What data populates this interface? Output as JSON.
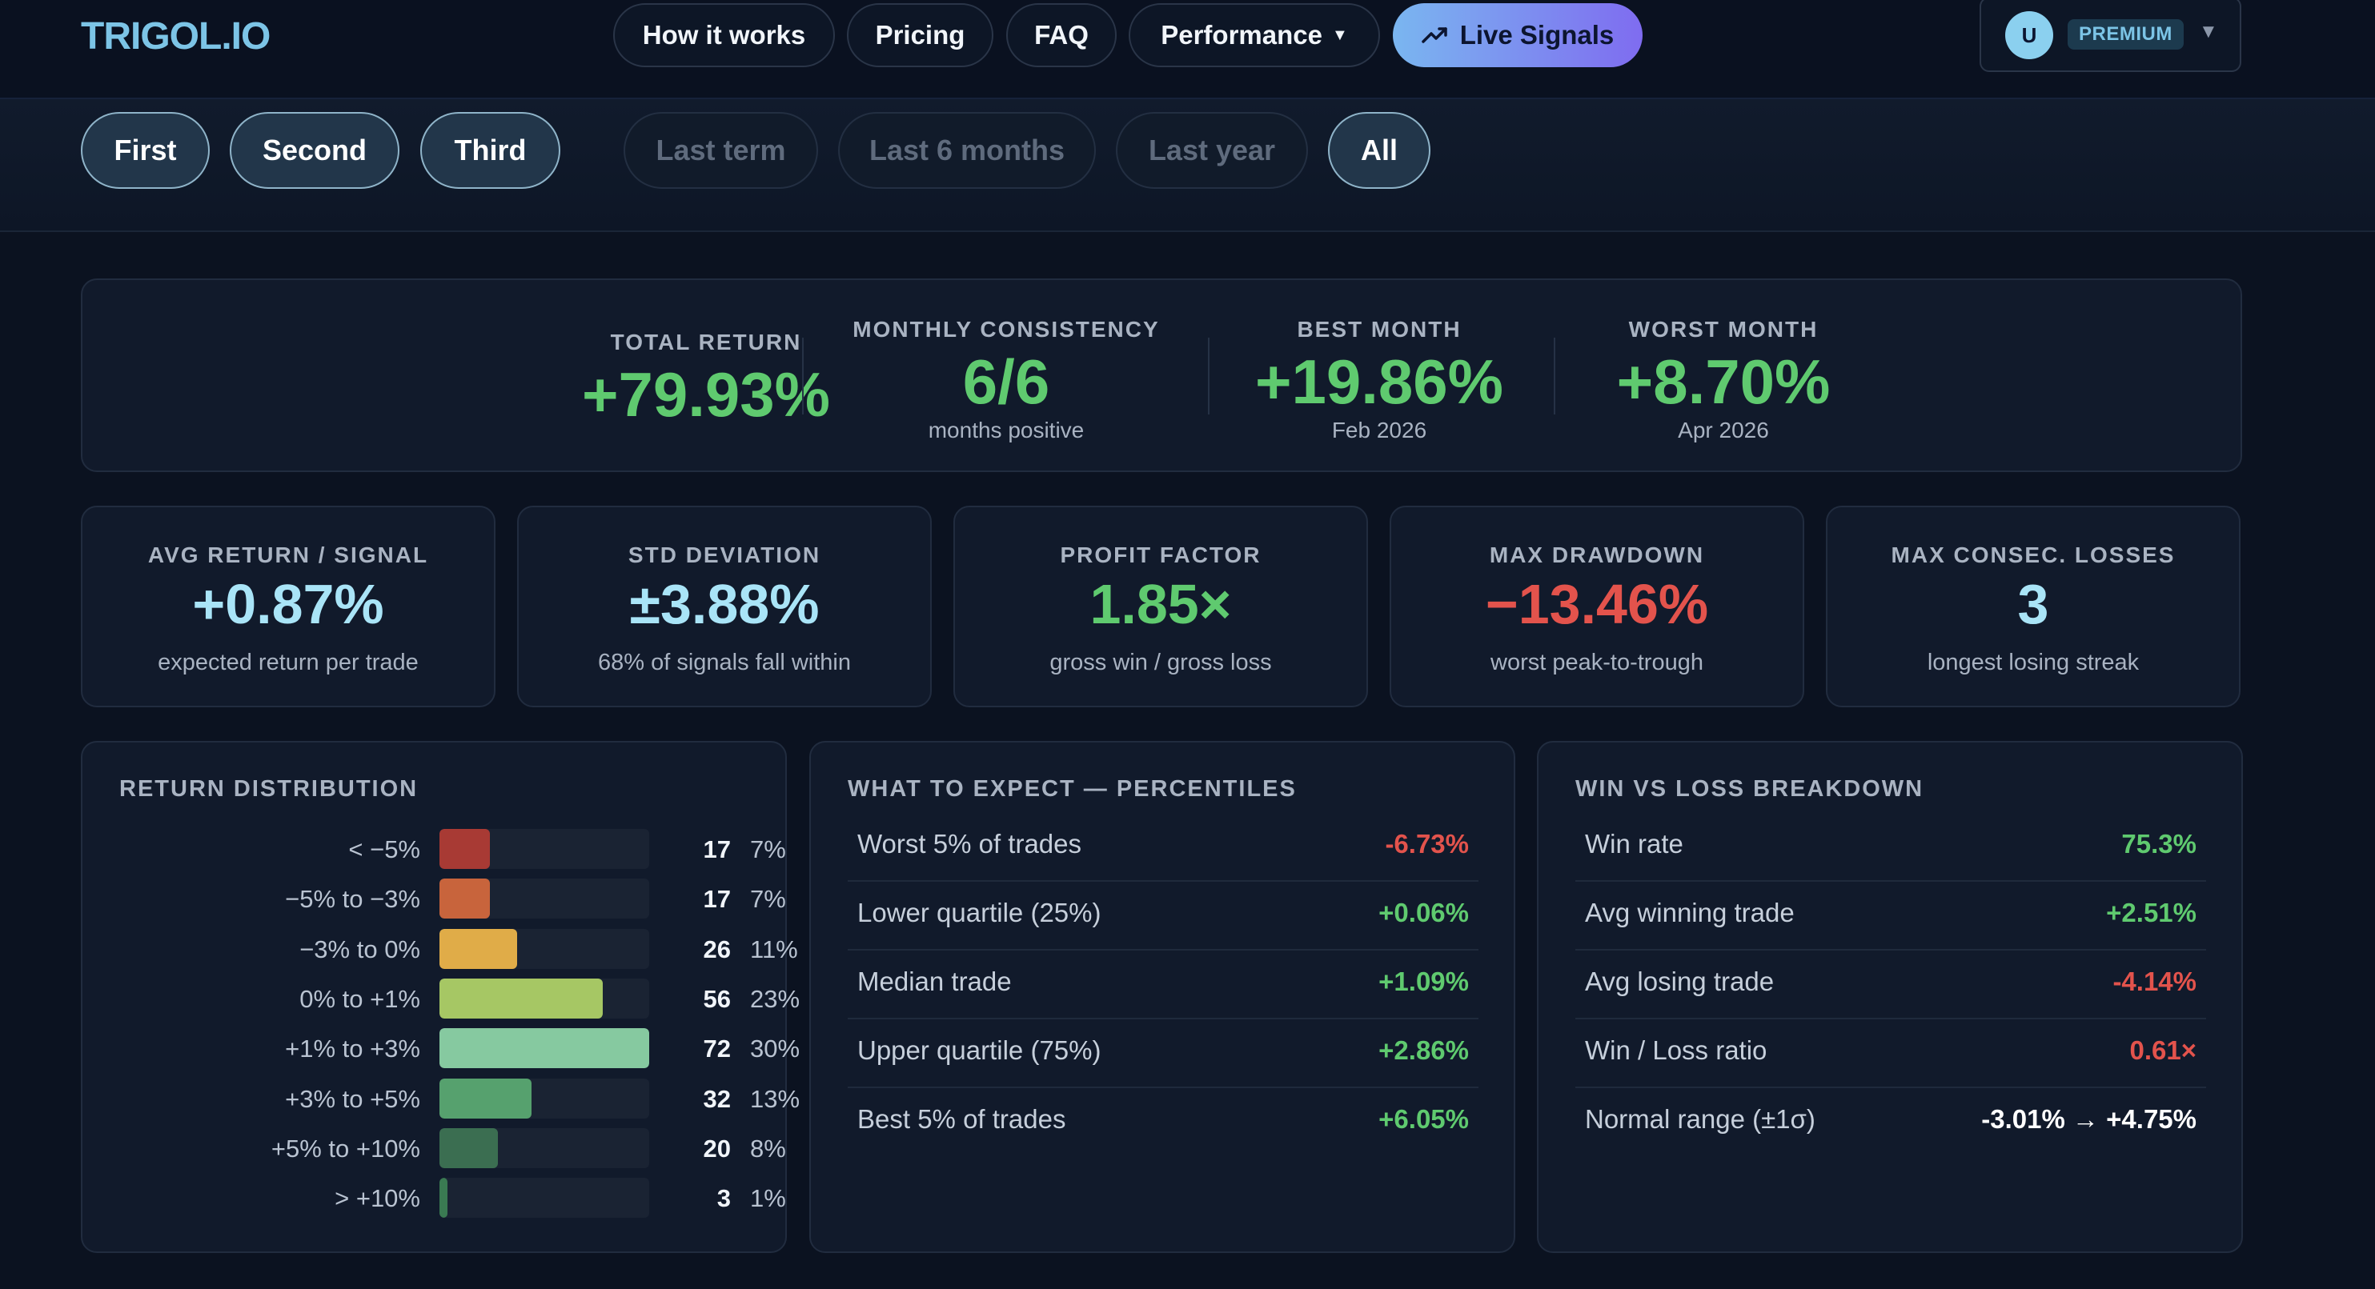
{
  "nav": {
    "logo": "TRIGOL.IO",
    "links": [
      "How it works",
      "Pricing",
      "FAQ"
    ],
    "performance_label": "Performance",
    "live_signals_label": "Live Signals",
    "avatar_initial": "U",
    "plan_badge": "PREMIUM"
  },
  "filters": {
    "groups": [
      "First",
      "Second",
      "Third"
    ],
    "periods": [
      "Last term",
      "Last 6 months",
      "Last year",
      "All"
    ],
    "active_group": [
      "First",
      "Second",
      "Third"
    ],
    "active_period": "All"
  },
  "summary": {
    "total_return": {
      "label": "TOTAL RETURN",
      "value": "+79.93%"
    },
    "monthly_consistency": {
      "label": "MONTHLY CONSISTENCY",
      "value": "6/6",
      "sub": "months positive"
    },
    "best_month": {
      "label": "BEST MONTH",
      "value": "+19.86%",
      "sub": "Feb 2026"
    },
    "worst_month": {
      "label": "WORST MONTH",
      "value": "+8.70%",
      "sub": "Apr 2026"
    }
  },
  "metrics": [
    {
      "label": "AVG RETURN / SIGNAL",
      "value": "+0.87%",
      "sub": "expected return per trade",
      "color": "#a9e4f7"
    },
    {
      "label": "STD DEVIATION",
      "value": "±3.88%",
      "sub": "68% of signals fall within",
      "color": "#a9e4f7"
    },
    {
      "label": "PROFIT FACTOR",
      "value": "1.85×",
      "sub": "gross win / gross loss",
      "color": "#5fca6f"
    },
    {
      "label": "MAX DRAWDOWN",
      "value": "−13.46%",
      "sub": "worst peak-to-trough",
      "color": "#e3534c"
    },
    {
      "label": "MAX CONSEC. LOSSES",
      "value": "3",
      "sub": "longest losing streak",
      "color": "#a9e4f7"
    }
  ],
  "distribution": {
    "title": "RETURN DISTRIBUTION",
    "rows": [
      {
        "range": "< −5%",
        "count": "17",
        "pct": "7%",
        "fill": 0.24,
        "color": "#a83a34"
      },
      {
        "range": "−5% to −3%",
        "count": "17",
        "pct": "7%",
        "fill": 0.24,
        "color": "#c8643c"
      },
      {
        "range": "−3% to 0%",
        "count": "26",
        "pct": "11%",
        "fill": 0.37,
        "color": "#e0ac48"
      },
      {
        "range": "0% to +1%",
        "count": "56",
        "pct": "23%",
        "fill": 0.78,
        "color": "#a6c764"
      },
      {
        "range": "+1% to +3%",
        "count": "72",
        "pct": "30%",
        "fill": 1.0,
        "color": "#86c9a0"
      },
      {
        "range": "+3% to +5%",
        "count": "32",
        "pct": "13%",
        "fill": 0.44,
        "color": "#56a16e"
      },
      {
        "range": "+5% to +10%",
        "count": "20",
        "pct": "8%",
        "fill": 0.28,
        "color": "#3b6e51"
      },
      {
        "range": "> +10%",
        "count": "3",
        "pct": "1%",
        "fill": 0.04,
        "color": "#3a7a52"
      }
    ]
  },
  "percentiles": {
    "title": "WHAT TO EXPECT — PERCENTILES",
    "rows": [
      {
        "label": "Worst 5% of trades",
        "value": "-6.73%",
        "tone": "red"
      },
      {
        "label": "Lower quartile (25%)",
        "value": "+0.06%",
        "tone": "green"
      },
      {
        "label": "Median trade",
        "value": "+1.09%",
        "tone": "green"
      },
      {
        "label": "Upper quartile (75%)",
        "value": "+2.86%",
        "tone": "green"
      },
      {
        "label": "Best 5% of trades",
        "value": "+6.05%",
        "tone": "green"
      }
    ]
  },
  "winloss": {
    "title": "WIN VS LOSS BREAKDOWN",
    "rows": [
      {
        "label": "Win rate",
        "value": "75.3%",
        "tone": "green"
      },
      {
        "label": "Avg winning trade",
        "value": "+2.51%",
        "tone": "green"
      },
      {
        "label": "Avg losing trade",
        "value": "-4.14%",
        "tone": "red"
      },
      {
        "label": "Win / Loss ratio",
        "value": "0.61×",
        "tone": "red"
      },
      {
        "label": "Normal range (±1σ)",
        "value": "-3.01% → +4.75%",
        "tone": "white"
      }
    ]
  }
}
